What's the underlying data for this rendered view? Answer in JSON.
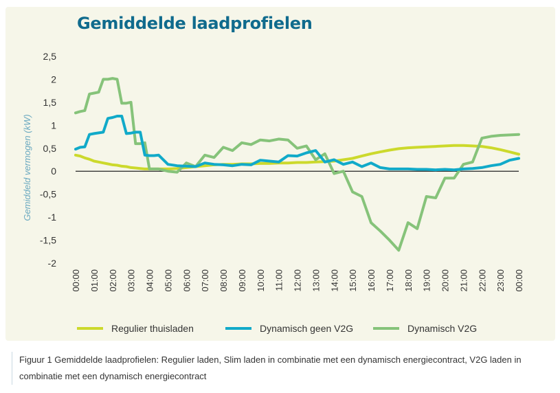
{
  "colors": {
    "panel": "#f6f6e9",
    "title": "#106b8d",
    "regulier": "#ccd92c",
    "geen_v2g": "#11aac9",
    "v2g": "#86c37a"
  },
  "caption": "Figuur 1 Gemiddelde laadprofielen: Regulier laden, Slim laden in combinatie met een dynamisch energiecontract, V2G laden in combinatie met een dynamisch energiecontract",
  "chart_data": {
    "type": "line",
    "title": "Gemiddelde laadprofielen",
    "xlabel": "",
    "ylabel": "Gemiddeld vermogen (kW)",
    "ylim": [
      -2,
      2.5
    ],
    "yticks": [
      "2,5",
      "2",
      "1,5",
      "1",
      "0,5",
      "0",
      "-0,5",
      "-1",
      "-1,5",
      "-2"
    ],
    "ytick_values": [
      2.5,
      2,
      1.5,
      1,
      0.5,
      0,
      -0.5,
      -1,
      -1.5,
      -2
    ],
    "categories": [
      "00:00",
      "01:00",
      "02:00",
      "03:00",
      "04:00",
      "05:00",
      "06:00",
      "07:00",
      "08:00",
      "09:00",
      "10:00",
      "11:00",
      "12:00",
      "13:00",
      "14:00",
      "15:00",
      "16:00",
      "17:00",
      "18:00",
      "19:00",
      "20:00",
      "21:00",
      "22:00",
      "23:00",
      "00:00"
    ],
    "legend_position": "bottom",
    "series": [
      {
        "name": "Regulier thuisladen",
        "color": "#ccd92c",
        "x": [
          0,
          0.25,
          0.5,
          0.75,
          1,
          1.25,
          1.5,
          1.75,
          2,
          2.25,
          2.5,
          2.75,
          3,
          3.25,
          3.5,
          3.75,
          4,
          4.5,
          5,
          5.5,
          6,
          6.5,
          7,
          7.5,
          8,
          8.5,
          9,
          9.5,
          10,
          10.5,
          11,
          11.5,
          12,
          12.5,
          13,
          13.5,
          14,
          14.5,
          15,
          15.5,
          16,
          16.5,
          17,
          17.5,
          18,
          18.5,
          19,
          19.5,
          20,
          20.5,
          21,
          21.5,
          22,
          22.5,
          23,
          23.5,
          24
        ],
        "values": [
          0.35,
          0.33,
          0.29,
          0.26,
          0.22,
          0.2,
          0.18,
          0.16,
          0.14,
          0.13,
          0.11,
          0.1,
          0.08,
          0.07,
          0.06,
          0.05,
          0.05,
          0.05,
          0.05,
          0.06,
          0.08,
          0.1,
          0.12,
          0.14,
          0.15,
          0.15,
          0.16,
          0.16,
          0.17,
          0.17,
          0.18,
          0.18,
          0.19,
          0.19,
          0.2,
          0.21,
          0.22,
          0.25,
          0.28,
          0.33,
          0.38,
          0.42,
          0.46,
          0.49,
          0.51,
          0.52,
          0.53,
          0.54,
          0.55,
          0.56,
          0.56,
          0.55,
          0.54,
          0.51,
          0.47,
          0.42,
          0.37
        ]
      },
      {
        "name": "Dynamisch geen V2G",
        "color": "#11aac9",
        "x": [
          0,
          0.25,
          0.5,
          0.75,
          1,
          1.5,
          1.75,
          2,
          2.25,
          2.5,
          2.75,
          3,
          3.25,
          3.5,
          3.75,
          4,
          4.25,
          4.5,
          5,
          5.5,
          6,
          6.5,
          7,
          7.5,
          8,
          8.5,
          9,
          9.5,
          10,
          10.5,
          11,
          11.5,
          12,
          12.5,
          13,
          13.5,
          14,
          14.5,
          15,
          15.5,
          16,
          16.5,
          17,
          17.5,
          18,
          18.5,
          19,
          19.5,
          20,
          20.5,
          21,
          21.5,
          22,
          22.5,
          23,
          23.5,
          24
        ],
        "values": [
          0.48,
          0.52,
          0.53,
          0.8,
          0.82,
          0.85,
          1.15,
          1.17,
          1.2,
          1.2,
          0.82,
          0.83,
          0.85,
          0.85,
          0.35,
          0.34,
          0.34,
          0.35,
          0.15,
          0.12,
          0.11,
          0.1,
          0.18,
          0.15,
          0.14,
          0.12,
          0.15,
          0.14,
          0.24,
          0.22,
          0.2,
          0.34,
          0.33,
          0.4,
          0.45,
          0.2,
          0.25,
          0.15,
          0.2,
          0.1,
          0.18,
          0.08,
          0.05,
          0.05,
          0.05,
          0.04,
          0.04,
          0.03,
          0.04,
          0.03,
          0.05,
          0.06,
          0.08,
          0.12,
          0.15,
          0.24,
          0.28
        ]
      },
      {
        "name": "Dynamisch V2G",
        "color": "#86c37a",
        "x": [
          0,
          0.25,
          0.5,
          0.75,
          1,
          1.25,
          1.5,
          1.75,
          2,
          2.25,
          2.5,
          2.75,
          3,
          3.25,
          3.5,
          3.75,
          4,
          4.5,
          5,
          5.5,
          6,
          6.5,
          7,
          7.5,
          8,
          8.5,
          9,
          9.5,
          10,
          10.5,
          11,
          11.5,
          12,
          12.5,
          13,
          13.5,
          14,
          14.5,
          15,
          15.5,
          16,
          16.5,
          17,
          17.5,
          18,
          18.5,
          19,
          19.5,
          20,
          20.5,
          21,
          21.5,
          22,
          22.5,
          23,
          23.5,
          24
        ],
        "values": [
          1.27,
          1.3,
          1.32,
          1.68,
          1.7,
          1.72,
          2.0,
          2.0,
          2.02,
          2.0,
          1.48,
          1.48,
          1.5,
          0.6,
          0.6,
          0.62,
          0.05,
          0.05,
          0.0,
          -0.02,
          0.18,
          0.1,
          0.35,
          0.3,
          0.52,
          0.45,
          0.62,
          0.58,
          0.68,
          0.66,
          0.7,
          0.68,
          0.5,
          0.55,
          0.25,
          0.38,
          -0.05,
          0.0,
          -0.45,
          -0.55,
          -1.12,
          -1.3,
          -1.5,
          -1.72,
          -1.12,
          -1.25,
          -0.55,
          -0.58,
          -0.15,
          -0.15,
          0.15,
          0.2,
          0.72,
          0.76,
          0.78,
          0.79,
          0.8
        ]
      }
    ]
  }
}
